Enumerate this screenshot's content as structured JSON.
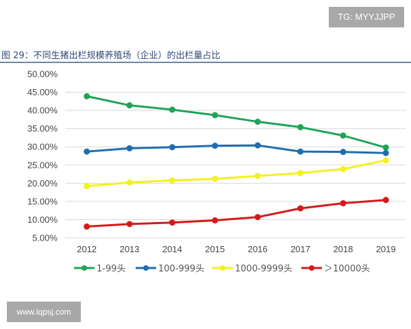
{
  "watermark_top": "TG: MYYJJPP",
  "watermark_bottom": "www.lqpsj.com",
  "figure_title": "图 29：不同生猪出栏规模养殖场（企业）的出栏量占比",
  "chart_data": {
    "type": "line",
    "title": "",
    "xlabel": "",
    "ylabel": "",
    "categories": [
      "2012",
      "2013",
      "2014",
      "2015",
      "2016",
      "2017",
      "2018",
      "2019"
    ],
    "ylim": [
      5,
      50
    ],
    "yticks": [
      "5.00%",
      "10.00%",
      "15.00%",
      "20.00%",
      "25.00%",
      "30.00%",
      "35.00%",
      "40.00%",
      "45.00%",
      "50.00%"
    ],
    "grid": true,
    "legend_position": "bottom",
    "series": [
      {
        "name": "1-99头",
        "color": "#1fa45a",
        "values": [
          43.9,
          41.4,
          40.2,
          38.7,
          36.9,
          35.4,
          33.1,
          29.8
        ]
      },
      {
        "name": "100-999头",
        "color": "#1f6db3",
        "values": [
          28.7,
          29.6,
          29.9,
          30.3,
          30.4,
          28.7,
          28.6,
          28.3
        ]
      },
      {
        "name": "1000-9999头",
        "color": "#f2f21e",
        "values": [
          19.2,
          20.2,
          20.8,
          21.2,
          22.0,
          22.8,
          23.9,
          26.3
        ]
      },
      {
        "name": "＞10000头",
        "color": "#d7191c",
        "values": [
          8.1,
          8.8,
          9.2,
          9.8,
          10.7,
          13.1,
          14.5,
          15.4
        ]
      }
    ]
  }
}
